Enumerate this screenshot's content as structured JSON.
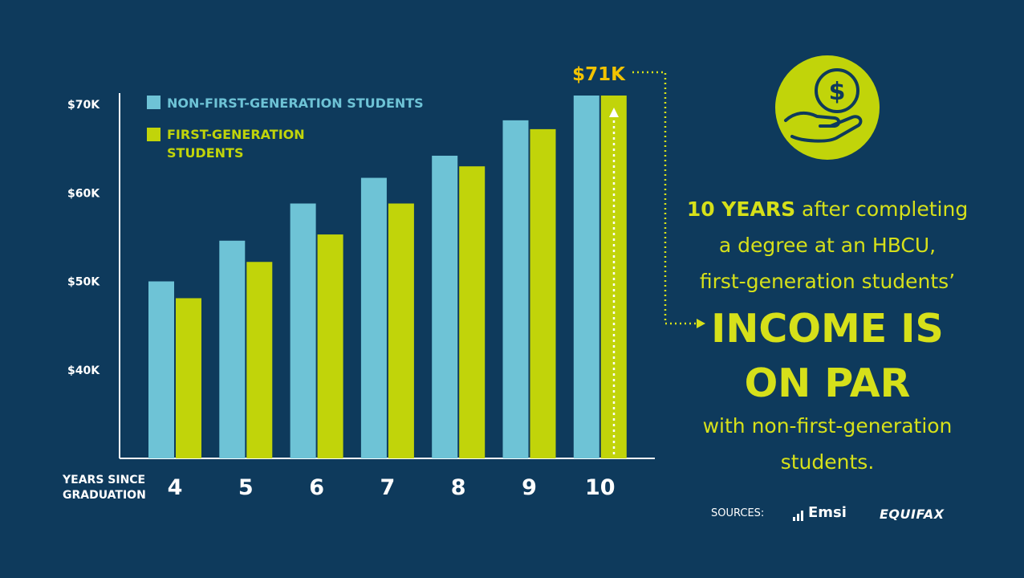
{
  "chart_data": {
    "type": "bar",
    "categories": [
      "4",
      "5",
      "6",
      "7",
      "8",
      "9",
      "10"
    ],
    "series": [
      {
        "name": "NON-FIRST-GENERATION STUDENTS",
        "color": "#6ec3d6",
        "values": [
          50,
          54.6,
          58.8,
          61.7,
          64.2,
          68.2,
          71
        ]
      },
      {
        "name": "FIRST-GENERATION STUDENTS",
        "color": "#c1d40a",
        "values": [
          48.1,
          52.2,
          55.3,
          58.8,
          63.0,
          67.2,
          71
        ]
      }
    ],
    "ylim": [
      30,
      71
    ],
    "yticks": [
      {
        "value": 70,
        "label": "$70K"
      },
      {
        "value": 60,
        "label": "$60K"
      },
      {
        "value": 50,
        "label": "$50K"
      },
      {
        "value": 40,
        "label": "$40K"
      }
    ],
    "xlabel_line1": "YEARS SINCE",
    "xlabel_line2": "GRADUATION",
    "legend_1": "NON-FIRST-GENERATION STUDENTS",
    "legend_2_line1": "FIRST-GENERATION",
    "legend_2_line2": "STUDENTS",
    "annotation": "$71K",
    "highlight_color": "#f2c300"
  },
  "text": {
    "years_bold": "10 YEARS",
    "line1_rest": " after completing",
    "line2": "a degree at an HBCU,",
    "line3": "first-generation students’",
    "big1": "INCOME IS",
    "big2": "ON PAR",
    "line4": "with non-first-generation",
    "line5": "students."
  },
  "footer": {
    "sources_label": "SOURCES:",
    "logo1": "Emsi",
    "logo2": "EQUIFAX"
  },
  "icon": "dollar-hand-icon",
  "colors": {
    "background": "#0e3a5c",
    "accent": "#c1d40a",
    "blue": "#6ec3d6",
    "white": "#ffffff"
  }
}
